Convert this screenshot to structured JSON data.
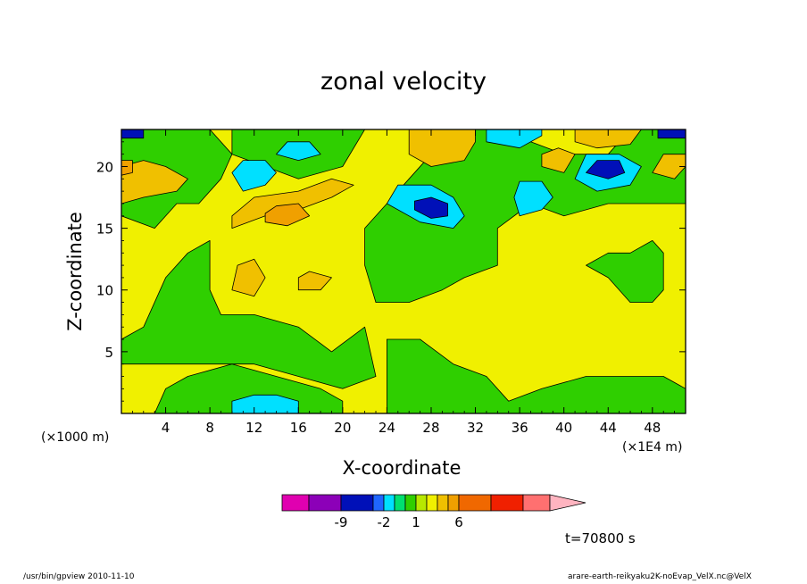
{
  "title": "zonal velocity",
  "footer": {
    "left": "/usr/bin/gpview  2010-11-10",
    "right": "arare-earth-reikyaku2K-noEvap_VelX.nc@VelX"
  },
  "time_label": "t=70800 s",
  "chart_data": {
    "type": "heatmap",
    "title": "zonal velocity",
    "xlabel": "X-coordinate",
    "ylabel": "Z-coordinate",
    "x_unit_label": "(×1000 m)",
    "z_unit_label": "(×1E4 m)",
    "xlim": [
      0,
      51
    ],
    "ylim": [
      0,
      23
    ],
    "x_ticks": [
      4,
      8,
      12,
      16,
      20,
      24,
      28,
      32,
      36,
      40,
      44,
      48
    ],
    "y_ticks": [
      5,
      10,
      15,
      20
    ],
    "background_level_color": "#f0f000",
    "colorbar": {
      "levels": [
        -9,
        -2,
        1,
        6
      ],
      "tick_labels": [
        "-9",
        "-2",
        "1",
        "6"
      ],
      "colors": [
        "#e000b0",
        "#8c00b8",
        "#0010b8",
        "#1f66ff",
        "#00e0ff",
        "#00e070",
        "#2fcf00",
        "#b8e800",
        "#f0f000",
        "#f0c000",
        "#f0a000",
        "#f06800",
        "#f02000",
        "#ff7070",
        "#ffb4c0"
      ]
    },
    "regions": [
      {
        "color": "#2fcf00",
        "points": [
          [
            0,
            6
          ],
          [
            2,
            7
          ],
          [
            4,
            11
          ],
          [
            6,
            13
          ],
          [
            8,
            14
          ],
          [
            8,
            10
          ],
          [
            9,
            8
          ],
          [
            12,
            8
          ],
          [
            16,
            7
          ],
          [
            19,
            5
          ],
          [
            22,
            7
          ],
          [
            23,
            3
          ],
          [
            20,
            2
          ],
          [
            16,
            3
          ],
          [
            12,
            4
          ],
          [
            8,
            4
          ],
          [
            4,
            4
          ],
          [
            0,
            4
          ]
        ]
      },
      {
        "color": "#2fcf00",
        "points": [
          [
            3,
            0
          ],
          [
            20,
            0
          ],
          [
            20,
            1
          ],
          [
            18,
            2
          ],
          [
            14,
            3
          ],
          [
            10,
            4
          ],
          [
            6,
            3
          ],
          [
            4,
            2
          ]
        ]
      },
      {
        "color": "#2fcf00",
        "points": [
          [
            23,
            9
          ],
          [
            26,
            9
          ],
          [
            29,
            10
          ],
          [
            31,
            11
          ],
          [
            34,
            12
          ],
          [
            34,
            15
          ],
          [
            37,
            17
          ],
          [
            40,
            16
          ],
          [
            44,
            17
          ],
          [
            48,
            17
          ],
          [
            51,
            17
          ],
          [
            51,
            23
          ],
          [
            46,
            23
          ],
          [
            44,
            21
          ],
          [
            40,
            21
          ],
          [
            37,
            22
          ],
          [
            34,
            23
          ],
          [
            30,
            23
          ],
          [
            28,
            21
          ],
          [
            26,
            19
          ],
          [
            24,
            17
          ],
          [
            22,
            15
          ],
          [
            22,
            12
          ]
        ]
      },
      {
        "color": "#2fcf00",
        "points": [
          [
            24,
            6
          ],
          [
            27,
            6
          ],
          [
            30,
            4
          ],
          [
            33,
            3
          ],
          [
            35,
            1
          ],
          [
            38,
            2
          ],
          [
            42,
            3
          ],
          [
            46,
            3
          ],
          [
            49,
            3
          ],
          [
            51,
            2
          ],
          [
            51,
            0
          ],
          [
            24,
            0
          ]
        ]
      },
      {
        "color": "#2fcf00",
        "points": [
          [
            0,
            23
          ],
          [
            8,
            23
          ],
          [
            10,
            21
          ],
          [
            9,
            19
          ],
          [
            7,
            17
          ],
          [
            5,
            17
          ],
          [
            3,
            15
          ],
          [
            0,
            16
          ]
        ]
      },
      {
        "color": "#2fcf00",
        "points": [
          [
            10,
            23
          ],
          [
            22,
            23
          ],
          [
            20,
            20
          ],
          [
            16,
            19
          ],
          [
            13,
            20
          ],
          [
            10,
            21
          ]
        ]
      },
      {
        "color": "#2fcf00",
        "points": [
          [
            42,
            12
          ],
          [
            44,
            11
          ],
          [
            46,
            9
          ],
          [
            48,
            9
          ],
          [
            49,
            10
          ],
          [
            49,
            13
          ],
          [
            48,
            14
          ],
          [
            46,
            13
          ],
          [
            44,
            13
          ]
        ]
      },
      {
        "color": "#00e0ff",
        "points": [
          [
            10,
            0
          ],
          [
            16,
            0
          ],
          [
            16,
            1
          ],
          [
            14,
            1.5
          ],
          [
            12,
            1.5
          ],
          [
            10,
            1
          ]
        ]
      },
      {
        "color": "#00e0ff",
        "points": [
          [
            11,
            18
          ],
          [
            13,
            18.5
          ],
          [
            14,
            19.5
          ],
          [
            13,
            20.5
          ],
          [
            11,
            20.5
          ],
          [
            10,
            19.5
          ]
        ]
      },
      {
        "color": "#00e0ff",
        "points": [
          [
            24,
            17
          ],
          [
            27,
            15.5
          ],
          [
            30,
            15
          ],
          [
            31,
            16
          ],
          [
            30,
            17.5
          ],
          [
            28,
            18.5
          ],
          [
            25,
            18.5
          ]
        ]
      },
      {
        "color": "#0010b8",
        "points": [
          [
            26.5,
            16.5
          ],
          [
            28,
            15.8
          ],
          [
            29.5,
            16
          ],
          [
            29.5,
            17
          ],
          [
            28,
            17.5
          ],
          [
            26.5,
            17.2
          ]
        ]
      },
      {
        "color": "#00e0ff",
        "points": [
          [
            36,
            16
          ],
          [
            38,
            16.5
          ],
          [
            39,
            17.5
          ],
          [
            38,
            18.8
          ],
          [
            36,
            18.8
          ],
          [
            35.5,
            17.5
          ]
        ]
      },
      {
        "color": "#00e0ff",
        "points": [
          [
            41,
            19
          ],
          [
            43,
            18
          ],
          [
            46,
            18.5
          ],
          [
            47,
            20
          ],
          [
            45,
            21
          ],
          [
            42,
            21
          ]
        ]
      },
      {
        "color": "#0010b8",
        "points": [
          [
            42,
            19.5
          ],
          [
            44,
            19
          ],
          [
            45.5,
            19.5
          ],
          [
            45,
            20.5
          ],
          [
            43,
            20.5
          ]
        ]
      },
      {
        "color": "#00e0ff",
        "points": [
          [
            14,
            21
          ],
          [
            16,
            20.5
          ],
          [
            18,
            21
          ],
          [
            17,
            22
          ],
          [
            15,
            22
          ]
        ]
      },
      {
        "color": "#00e0ff",
        "points": [
          [
            33,
            22
          ],
          [
            36,
            21.5
          ],
          [
            38,
            22.5
          ],
          [
            38,
            23
          ],
          [
            33,
            23
          ]
        ]
      },
      {
        "color": "#0010b8",
        "points": [
          [
            0,
            22.3
          ],
          [
            2,
            22.3
          ],
          [
            2,
            23
          ],
          [
            0,
            23
          ]
        ]
      },
      {
        "color": "#0010b8",
        "points": [
          [
            48.5,
            22.3
          ],
          [
            51,
            22.3
          ],
          [
            51,
            23
          ],
          [
            48.5,
            23
          ]
        ]
      },
      {
        "color": "#f0c000",
        "points": [
          [
            0,
            17
          ],
          [
            2,
            17.5
          ],
          [
            5,
            18
          ],
          [
            6,
            19
          ],
          [
            4,
            20
          ],
          [
            2,
            20.5
          ],
          [
            0,
            20
          ]
        ]
      },
      {
        "color": "#f0c000",
        "points": [
          [
            10,
            15
          ],
          [
            13,
            16
          ],
          [
            16,
            16.5
          ],
          [
            19,
            17.5
          ],
          [
            21,
            18.5
          ],
          [
            19,
            19
          ],
          [
            16,
            18
          ],
          [
            12,
            17.5
          ],
          [
            10,
            16
          ]
        ]
      },
      {
        "color": "#f0a000",
        "points": [
          [
            13,
            15.5
          ],
          [
            15,
            15.2
          ],
          [
            17,
            16
          ],
          [
            16,
            17
          ],
          [
            14,
            16.8
          ],
          [
            13,
            16.2
          ]
        ]
      },
      {
        "color": "#f0c000",
        "points": [
          [
            10,
            10
          ],
          [
            12,
            9.5
          ],
          [
            13,
            11
          ],
          [
            12,
            12.5
          ],
          [
            10.5,
            12
          ]
        ]
      },
      {
        "color": "#f0c000",
        "points": [
          [
            16,
            10
          ],
          [
            18,
            10
          ],
          [
            19,
            11
          ],
          [
            17,
            11.5
          ],
          [
            16,
            11
          ]
        ]
      },
      {
        "color": "#f0c000",
        "points": [
          [
            26,
            21
          ],
          [
            28,
            20
          ],
          [
            31,
            20.5
          ],
          [
            32,
            22
          ],
          [
            32,
            23
          ],
          [
            26,
            23
          ]
        ]
      },
      {
        "color": "#f0c000",
        "points": [
          [
            38,
            20
          ],
          [
            40,
            19.5
          ],
          [
            41,
            21
          ],
          [
            39.5,
            21.5
          ],
          [
            38,
            21
          ]
        ]
      },
      {
        "color": "#f0c000",
        "points": [
          [
            41,
            22
          ],
          [
            43,
            21.5
          ],
          [
            46,
            21.8
          ],
          [
            47,
            23
          ],
          [
            41,
            23
          ]
        ]
      },
      {
        "color": "#f0c000",
        "points": [
          [
            48,
            19.5
          ],
          [
            50,
            19
          ],
          [
            51,
            20
          ],
          [
            51,
            21
          ],
          [
            49,
            21
          ]
        ]
      },
      {
        "color": "#f0a000",
        "points": [
          [
            0,
            19.3
          ],
          [
            1,
            19.5
          ],
          [
            1,
            20.5
          ],
          [
            0,
            20.5
          ]
        ]
      }
    ]
  }
}
